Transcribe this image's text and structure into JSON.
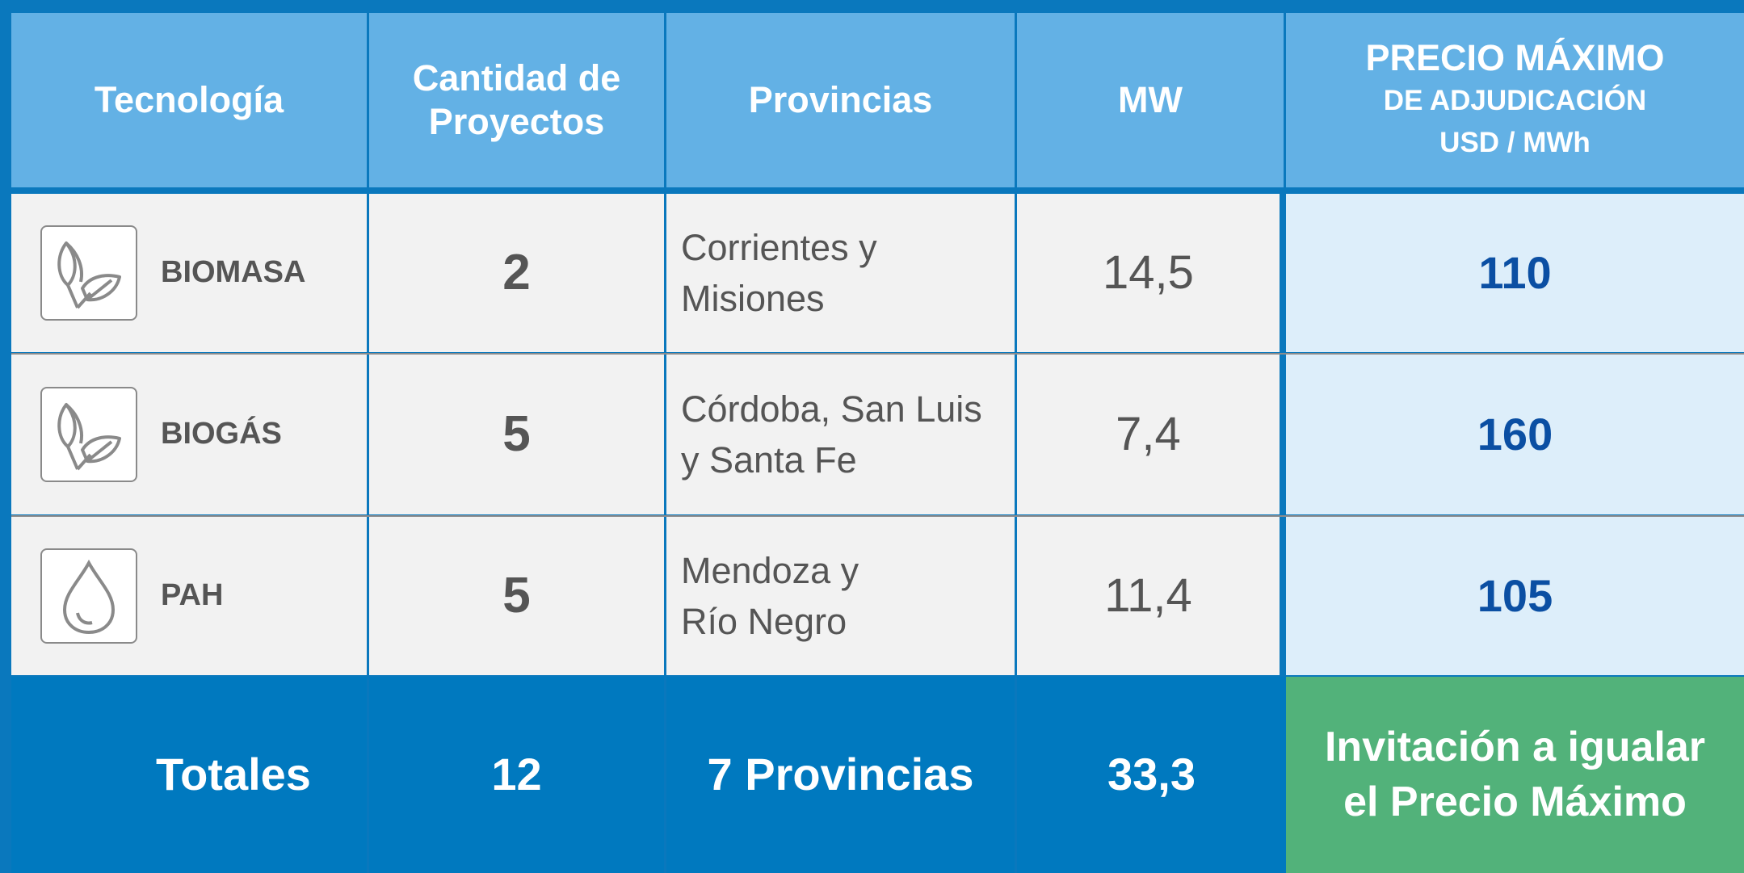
{
  "table": {
    "header": [
      [
        "Tecnología"
      ],
      [
        "Cantidad de",
        "Proyectos"
      ],
      [
        "Provincias"
      ],
      [
        "MW"
      ],
      [
        "PRECIO MÁXIMO",
        "DE ADJUDICACIÓN",
        "USD / MWh"
      ]
    ],
    "rows": [
      {
        "technology": "BIOMASA",
        "projects": "2",
        "provinces": [
          "Corrientes y",
          "Misiones"
        ],
        "mw": "14,5",
        "price": "110"
      },
      {
        "technology": "BIOGÁS",
        "projects": "5",
        "provinces": [
          "Córdoba, San Luis",
          "y Santa Fe"
        ],
        "mw": "7,4",
        "price": "160"
      },
      {
        "technology": "PAH",
        "projects": "5",
        "provinces": [
          "Mendoza y",
          "Río Negro"
        ],
        "mw": "11,4",
        "price": "105"
      }
    ],
    "totals": {
      "label": "Totales",
      "projects": "12",
      "provinces": "7 Provincias",
      "mw": "33,3",
      "note": [
        "Invitación a igualar",
        "el Precio Máximo"
      ]
    }
  }
}
